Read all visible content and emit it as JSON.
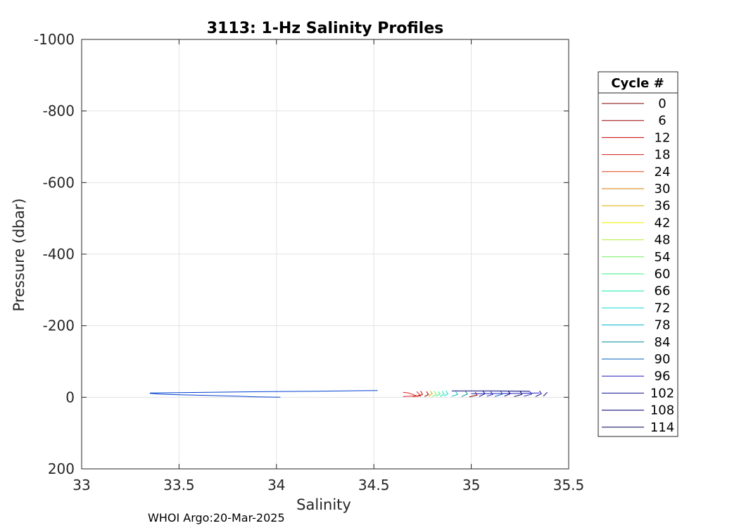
{
  "chart_data": {
    "type": "line",
    "title": "3113: 1-Hz Salinity Profiles",
    "xlabel": "Salinity",
    "ylabel": "Pressure (dbar)",
    "xlim": [
      33,
      35.5
    ],
    "ylim": [
      -1000,
      200
    ],
    "y_reversed": true,
    "grid": true,
    "xticks": [
      "33",
      "33.5",
      "34",
      "34.5",
      "35",
      "35.5"
    ],
    "xtick_values": [
      33,
      33.5,
      34,
      34.5,
      35,
      35.5
    ],
    "yticks": [
      "-1000",
      "-800",
      "-600",
      "-400",
      "-200",
      "0",
      "200"
    ],
    "ytick_values": [
      -1000,
      -800,
      -600,
      -400,
      -200,
      0,
      200
    ],
    "legend": {
      "title": "Cycle #",
      "placement": "outside-right",
      "entries": [
        {
          "label": "0",
          "color": "#800000"
        },
        {
          "label": "6",
          "color": "#9a0000"
        },
        {
          "label": "12",
          "color": "#c00000"
        },
        {
          "label": "18",
          "color": "#d81818"
        },
        {
          "label": "24",
          "color": "#e04010"
        },
        {
          "label": "30",
          "color": "#d07800"
        },
        {
          "label": "36",
          "color": "#d8b000"
        },
        {
          "label": "42",
          "color": "#f0f000"
        },
        {
          "label": "48",
          "color": "#b0f030"
        },
        {
          "label": "54",
          "color": "#70f060"
        },
        {
          "label": "60",
          "color": "#30f080"
        },
        {
          "label": "66",
          "color": "#10e8a8"
        },
        {
          "label": "72",
          "color": "#10d8d0"
        },
        {
          "label": "78",
          "color": "#00b8c8"
        },
        {
          "label": "84",
          "color": "#008c9a"
        },
        {
          "label": "90",
          "color": "#0060c0"
        },
        {
          "label": "96",
          "color": "#2020c0"
        },
        {
          "label": "102",
          "color": "#101090"
        },
        {
          "label": "108",
          "color": "#000078"
        },
        {
          "label": "114",
          "color": "#000050"
        }
      ]
    },
    "series": [
      {
        "color": "#e02020",
        "x": [
          34.65,
          34.72,
          34.7,
          34.68,
          34.65
        ],
        "y": [
          -2,
          -4,
          -8,
          -12,
          -14
        ]
      },
      {
        "color": "#d82010",
        "x": [
          34.7,
          34.74,
          34.73,
          34.72
        ],
        "y": [
          -2,
          -4,
          -10,
          -16
        ]
      },
      {
        "color": "#c00000",
        "x": [
          34.72,
          34.75,
          34.74
        ],
        "y": [
          -3,
          -8,
          -18
        ]
      },
      {
        "color": "#9a0000",
        "x": [
          34.76,
          34.78,
          34.77
        ],
        "y": [
          -2,
          -8,
          -16
        ]
      },
      {
        "color": "#d8b000",
        "x": [
          34.78,
          34.8,
          34.79
        ],
        "y": [
          -3,
          -10,
          -17
        ]
      },
      {
        "color": "#70f060",
        "x": [
          34.8,
          34.82,
          34.81
        ],
        "y": [
          -2,
          -8,
          -18
        ]
      },
      {
        "color": "#30f080",
        "x": [
          34.82,
          34.84,
          34.83
        ],
        "y": [
          -3,
          -10,
          -16
        ]
      },
      {
        "color": "#10e8a8",
        "x": [
          34.84,
          34.86,
          34.85
        ],
        "y": [
          -2,
          -9,
          -17
        ]
      },
      {
        "color": "#10d8d0",
        "x": [
          34.86,
          34.88,
          34.87
        ],
        "y": [
          -3,
          -10,
          -18
        ]
      },
      {
        "color": "#00b8c8",
        "x": [
          34.9,
          34.93,
          34.92
        ],
        "y": [
          -3,
          -8,
          -16
        ]
      },
      {
        "color": "#008c9a",
        "x": [
          34.95,
          34.98,
          34.97
        ],
        "y": [
          -2,
          -9,
          -17
        ]
      },
      {
        "color": "#800000",
        "x": [
          34.99,
          35.03,
          35.02
        ],
        "y": [
          -1,
          -6,
          -15
        ]
      },
      {
        "color": "#101090",
        "x": [
          35.04,
          35.07,
          35.06
        ],
        "y": [
          -2,
          -10,
          -18
        ]
      },
      {
        "color": "#2020c0",
        "x": [
          35.08,
          35.11,
          35.1
        ],
        "y": [
          -3,
          -8,
          -16
        ]
      },
      {
        "color": "#0060c0",
        "x": [
          35.12,
          35.16,
          35.15
        ],
        "y": [
          -2,
          -9,
          -18
        ]
      },
      {
        "color": "#000078",
        "x": [
          35.17,
          35.2,
          35.19
        ],
        "y": [
          -3,
          -10,
          -17
        ]
      },
      {
        "color": "#000050",
        "x": [
          35.22,
          35.26,
          35.25
        ],
        "y": [
          -2,
          -8,
          -18
        ]
      },
      {
        "color": "#2020c0",
        "x": [
          35.27,
          35.31,
          35.3
        ],
        "y": [
          -3,
          -9,
          -16
        ]
      },
      {
        "color": "#101090",
        "x": [
          35.33,
          35.36,
          35.35
        ],
        "y": [
          -2,
          -10,
          -18
        ]
      },
      {
        "color": "#000078",
        "x": [
          35.37,
          35.39
        ],
        "y": [
          -3,
          -14
        ]
      },
      {
        "color": "#2020c0",
        "x": [
          35.0,
          35.25,
          35.35
        ],
        "y": [
          -10,
          -11,
          -12
        ]
      },
      {
        "color": "#000078",
        "x": [
          34.9,
          35.1,
          35.3
        ],
        "y": [
          -18,
          -18,
          -17
        ]
      },
      {
        "color": "#0040d0",
        "x": [
          34.02,
          33.9,
          33.8,
          33.65,
          33.5,
          33.4,
          33.35
        ],
        "y": [
          0,
          -1,
          -3,
          -5,
          -7,
          -9,
          -11
        ]
      },
      {
        "color": "#0040d0",
        "x": [
          33.35,
          33.8,
          34.2,
          34.52
        ],
        "y": [
          -12,
          -15,
          -17,
          -19
        ]
      }
    ]
  },
  "footer": {
    "text": "WHOI Argo:20-Mar-2025"
  }
}
